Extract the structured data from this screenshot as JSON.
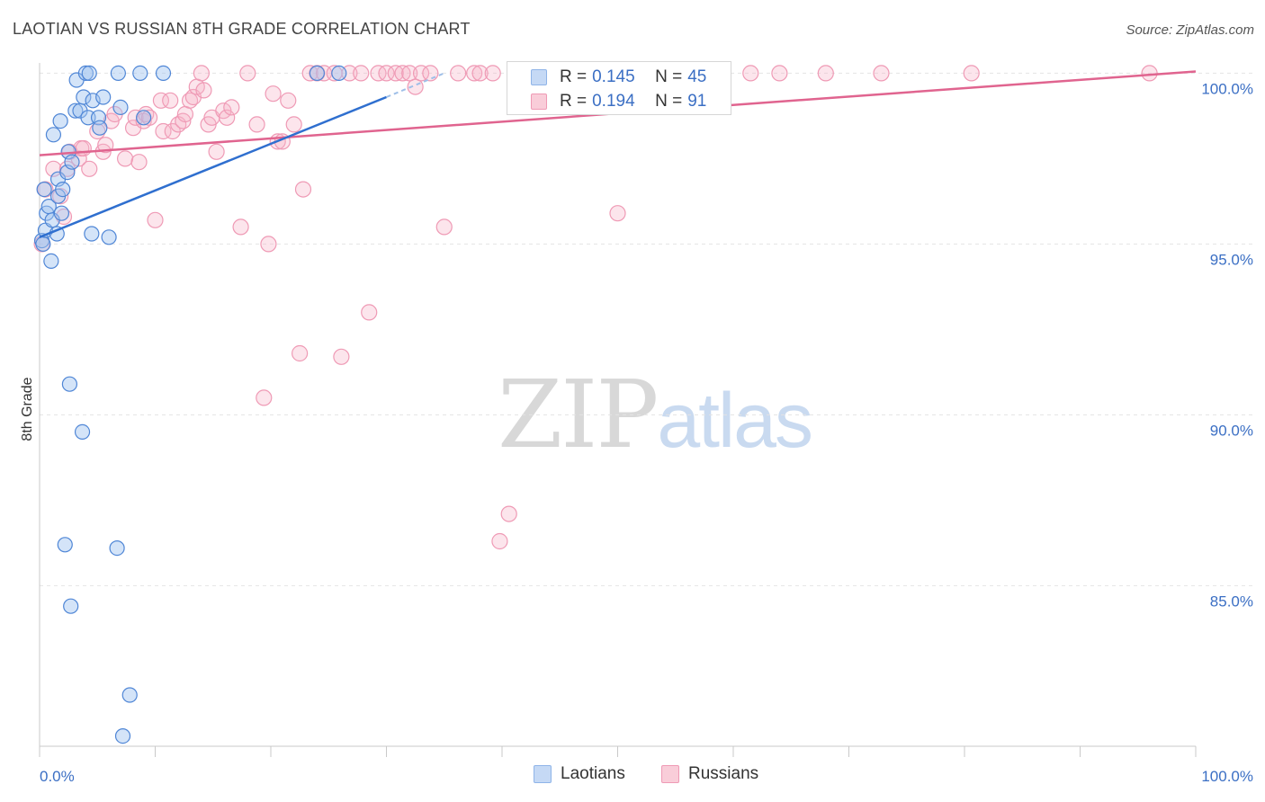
{
  "header": {
    "title": "LAOTIAN VS RUSSIAN 8TH GRADE CORRELATION CHART",
    "source": "Source: ZipAtlas.com"
  },
  "watermark": {
    "zip": "ZIP",
    "atlas": "atlas"
  },
  "legend_top": {
    "rows": [
      {
        "r_label": "R =",
        "r_value": "0.145",
        "n_label": "N =",
        "n_value": "45",
        "color": "#8fb4e8",
        "fill": "#c5d9f5"
      },
      {
        "r_label": "R =",
        "r_value": "0.194",
        "n_label": "N =",
        "n_value": "91",
        "color": "#ef9ab5",
        "fill": "#f9cdd9"
      }
    ]
  },
  "legend_bottom": {
    "items": [
      {
        "label": "Laotians",
        "color": "#8fb4e8",
        "fill": "#c5d9f5"
      },
      {
        "label": "Russians",
        "color": "#ef9ab5",
        "fill": "#f9cdd9"
      }
    ]
  },
  "chart_data": {
    "type": "scatter",
    "title": "LAOTIAN VS RUSSIAN 8TH GRADE CORRELATION CHART",
    "xlabel": "",
    "ylabel": "8th Grade",
    "xlim": [
      0,
      100
    ],
    "ylim": [
      80.3,
      100.3
    ],
    "x_tick_labels": [
      "0.0%",
      "100.0%"
    ],
    "y_ticks": [
      85,
      90,
      95,
      100
    ],
    "y_tick_labels": [
      "85.0%",
      "90.0%",
      "95.0%",
      "100.0%"
    ],
    "grid": true,
    "colors": {
      "laotians": "#8fb4e8",
      "laotians_fill": "rgba(160,195,240,0.45)",
      "laotians_line": "#2f6fcf",
      "russians": "#ef9ab5",
      "russians_fill": "rgba(246,180,200,0.35)",
      "russians_line": "#e0648f"
    },
    "series": [
      {
        "name": "Laotians",
        "r": 0.145,
        "n": 45,
        "trend": {
          "x": [
            0,
            30
          ],
          "y": [
            95.2,
            99.3
          ]
        },
        "trend_dashed": {
          "x": [
            30,
            35
          ],
          "y": [
            99.3,
            100.0
          ]
        },
        "points": [
          [
            0.2,
            95.1
          ],
          [
            0.3,
            95.0
          ],
          [
            0.4,
            96.6
          ],
          [
            0.5,
            95.4
          ],
          [
            0.6,
            95.9
          ],
          [
            0.8,
            96.1
          ],
          [
            1.0,
            94.5
          ],
          [
            1.1,
            95.7
          ],
          [
            1.2,
            98.2
          ],
          [
            1.5,
            95.3
          ],
          [
            1.6,
            96.4
          ],
          [
            1.6,
            96.9
          ],
          [
            1.8,
            98.6
          ],
          [
            1.9,
            95.9
          ],
          [
            2.0,
            96.6
          ],
          [
            2.2,
            86.2
          ],
          [
            2.4,
            97.1
          ],
          [
            2.5,
            97.7
          ],
          [
            2.6,
            90.9
          ],
          [
            2.7,
            84.4
          ],
          [
            2.8,
            97.4
          ],
          [
            3.1,
            98.9
          ],
          [
            3.2,
            99.8
          ],
          [
            3.5,
            98.9
          ],
          [
            3.7,
            89.5
          ],
          [
            3.8,
            99.3
          ],
          [
            4.0,
            100.0
          ],
          [
            4.2,
            98.7
          ],
          [
            4.3,
            100.0
          ],
          [
            4.5,
            95.3
          ],
          [
            4.6,
            99.2
          ],
          [
            5.1,
            98.7
          ],
          [
            5.2,
            98.4
          ],
          [
            5.5,
            99.3
          ],
          [
            6.0,
            95.2
          ],
          [
            6.7,
            86.1
          ],
          [
            6.8,
            100.0
          ],
          [
            7.0,
            99.0
          ],
          [
            7.2,
            80.6
          ],
          [
            7.8,
            81.8
          ],
          [
            8.7,
            100.0
          ],
          [
            9.0,
            98.7
          ],
          [
            10.7,
            100.0
          ],
          [
            24.0,
            100.0
          ],
          [
            25.9,
            100.0
          ]
        ]
      },
      {
        "name": "Russians",
        "r": 0.194,
        "n": 91,
        "trend": {
          "x": [
            0,
            100
          ],
          "y": [
            97.6,
            100.05
          ]
        },
        "points": [
          [
            0.2,
            95.0
          ],
          [
            0.5,
            96.6
          ],
          [
            1.2,
            97.2
          ],
          [
            1.8,
            96.4
          ],
          [
            2.1,
            95.8
          ],
          [
            2.4,
            97.2
          ],
          [
            2.6,
            97.7
          ],
          [
            3.4,
            97.5
          ],
          [
            3.6,
            97.8
          ],
          [
            3.8,
            97.8
          ],
          [
            4.3,
            97.2
          ],
          [
            5.0,
            98.3
          ],
          [
            5.5,
            97.7
          ],
          [
            5.7,
            97.9
          ],
          [
            6.2,
            98.6
          ],
          [
            6.5,
            98.8
          ],
          [
            7.4,
            97.5
          ],
          [
            8.1,
            98.4
          ],
          [
            8.3,
            98.7
          ],
          [
            8.6,
            97.4
          ],
          [
            9.0,
            98.6
          ],
          [
            9.2,
            98.8
          ],
          [
            9.5,
            98.7
          ],
          [
            10.0,
            95.7
          ],
          [
            10.5,
            99.2
          ],
          [
            10.7,
            98.3
          ],
          [
            11.3,
            99.2
          ],
          [
            11.5,
            98.3
          ],
          [
            12.0,
            98.5
          ],
          [
            12.4,
            98.6
          ],
          [
            12.6,
            98.8
          ],
          [
            13.0,
            99.2
          ],
          [
            13.3,
            99.3
          ],
          [
            13.6,
            99.6
          ],
          [
            14.0,
            100.0
          ],
          [
            14.2,
            99.5
          ],
          [
            14.6,
            98.5
          ],
          [
            14.9,
            98.7
          ],
          [
            15.3,
            97.7
          ],
          [
            15.9,
            98.9
          ],
          [
            16.2,
            98.7
          ],
          [
            16.6,
            99.0
          ],
          [
            17.4,
            95.5
          ],
          [
            18.0,
            100.0
          ],
          [
            18.8,
            98.5
          ],
          [
            19.4,
            90.5
          ],
          [
            19.8,
            95.0
          ],
          [
            20.2,
            99.4
          ],
          [
            20.6,
            98.0
          ],
          [
            21.0,
            98.0
          ],
          [
            21.5,
            99.2
          ],
          [
            22.0,
            98.5
          ],
          [
            22.5,
            91.8
          ],
          [
            22.8,
            96.6
          ],
          [
            23.4,
            100.0
          ],
          [
            24.0,
            100.0
          ],
          [
            24.6,
            100.0
          ],
          [
            25.5,
            100.0
          ],
          [
            26.1,
            91.7
          ],
          [
            26.8,
            100.0
          ],
          [
            27.8,
            100.0
          ],
          [
            28.5,
            93.0
          ],
          [
            29.3,
            100.0
          ],
          [
            30.0,
            100.0
          ],
          [
            30.8,
            100.0
          ],
          [
            31.4,
            100.0
          ],
          [
            32.0,
            100.0
          ],
          [
            32.5,
            99.6
          ],
          [
            33.0,
            100.0
          ],
          [
            33.8,
            100.0
          ],
          [
            35.0,
            95.5
          ],
          [
            36.2,
            100.0
          ],
          [
            37.6,
            100.0
          ],
          [
            38.1,
            100.0
          ],
          [
            39.2,
            100.0
          ],
          [
            39.8,
            86.3
          ],
          [
            40.6,
            87.1
          ],
          [
            42.2,
            100.0
          ],
          [
            45.0,
            100.0
          ],
          [
            47.3,
            100.0
          ],
          [
            50.0,
            95.9
          ],
          [
            51.5,
            100.0
          ],
          [
            52.6,
            100.0
          ],
          [
            54.8,
            100.0
          ],
          [
            57.2,
            100.0
          ],
          [
            61.5,
            100.0
          ],
          [
            64.0,
            100.0
          ],
          [
            68.0,
            100.0
          ],
          [
            72.8,
            100.0
          ],
          [
            80.6,
            100.0
          ],
          [
            96.0,
            100.0
          ]
        ]
      }
    ]
  }
}
